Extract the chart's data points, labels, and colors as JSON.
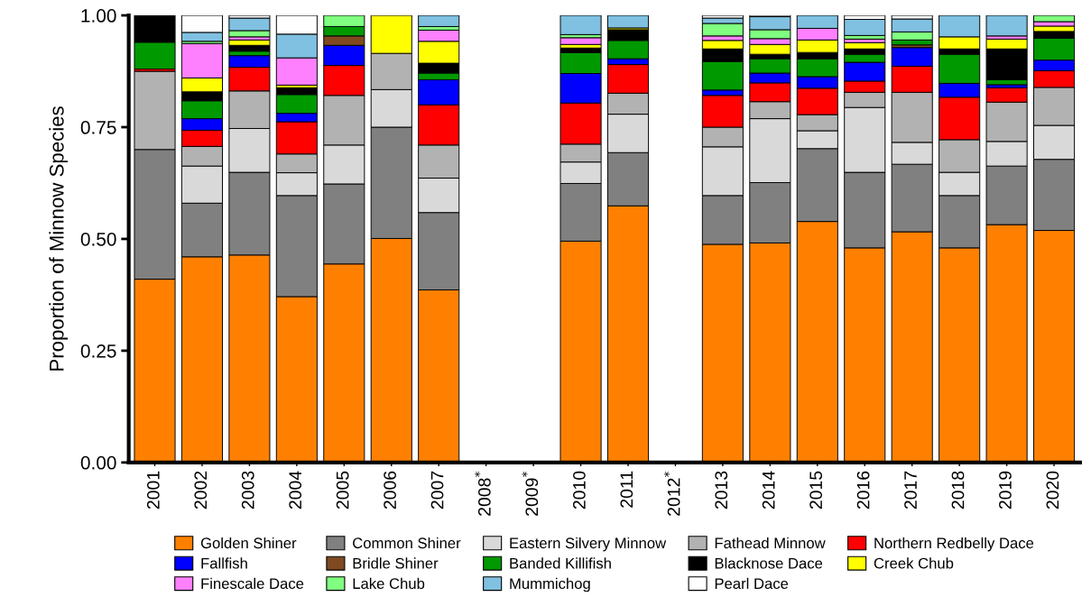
{
  "chart_data": {
    "type": "bar",
    "stacked": true,
    "ylabel": "Proportion of Minnow Species",
    "categories": [
      "2001",
      "2002",
      "2003",
      "2004",
      "2005",
      "2006",
      "2007",
      "2008$^{*}$",
      "2009$^{*}$",
      "2010",
      "2011",
      "2012$^{*}$",
      "2013",
      "2014",
      "2015",
      "2016",
      "2017",
      "2018",
      "2019",
      "2020"
    ],
    "ylim": [
      0,
      1
    ],
    "yticks": [
      {
        "value": 0,
        "label": "0.00"
      },
      {
        "value": 0.25,
        "label": "0.25"
      },
      {
        "value": 0.5,
        "label": "0.50"
      },
      {
        "value": 0.75,
        "label": "0.75"
      },
      {
        "value": 1,
        "label": "1.00"
      }
    ],
    "grid": false,
    "legend": "bottom",
    "series": [
      {
        "name": "Golden Shiner",
        "color": "#ff8000",
        "values": [
          0.41,
          0.46,
          0.464,
          0.371,
          0.444,
          0.501,
          0.386,
          null,
          null,
          0.495,
          0.574,
          null,
          0.488,
          0.491,
          0.539,
          0.48,
          0.516,
          0.48,
          0.532,
          0.519
        ]
      },
      {
        "name": "Common Shiner",
        "color": "#808080",
        "values": [
          0.29,
          0.12,
          0.185,
          0.226,
          0.179,
          0.249,
          0.173,
          null,
          null,
          0.129,
          0.119,
          null,
          0.109,
          0.135,
          0.163,
          0.169,
          0.151,
          0.117,
          0.131,
          0.159
        ]
      },
      {
        "name": "Eastern Silvery Minnow",
        "color": "#d9d9d9",
        "values": [
          0,
          0.083,
          0.098,
          0.051,
          0.087,
          0.084,
          0.077,
          null,
          null,
          0.048,
          0.086,
          null,
          0.109,
          0.143,
          0.04,
          0.145,
          0.049,
          0.052,
          0.055,
          0.076
        ]
      },
      {
        "name": "Fathead Minnow",
        "color": "#b2b2b2",
        "values": [
          0.175,
          0.044,
          0.084,
          0.042,
          0.111,
          0.081,
          0.074,
          null,
          null,
          0.04,
          0.047,
          null,
          0.044,
          0.038,
          0.036,
          0.034,
          0.112,
          0.073,
          0.088,
          0.085
        ]
      },
      {
        "name": "Northern Redbelly Dace",
        "color": "#ff0000",
        "values": [
          0.005,
          0.036,
          0.053,
          0.072,
          0.067,
          0,
          0.09,
          null,
          null,
          0.092,
          0.064,
          null,
          0.071,
          0.042,
          0.059,
          0.025,
          0.058,
          0.095,
          0.032,
          0.037
        ]
      },
      {
        "name": "Fallfish",
        "color": "#0000ff",
        "values": [
          0,
          0.026,
          0.026,
          0.019,
          0.045,
          0,
          0.056,
          null,
          null,
          0.066,
          0.013,
          null,
          0.012,
          0.022,
          0.026,
          0.042,
          0.042,
          0.031,
          0.007,
          0.024
        ]
      },
      {
        "name": "Bridle Shiner",
        "color": "#7f4a22",
        "values": [
          0,
          0,
          0,
          0,
          0.021,
          0,
          0,
          null,
          null,
          0,
          0,
          null,
          0,
          0,
          0,
          0,
          0.006,
          0,
          0,
          0
        ]
      },
      {
        "name": "Banded Killifish",
        "color": "#009900",
        "values": [
          0.06,
          0.04,
          0.01,
          0.042,
          0.021,
          0,
          0.015,
          null,
          null,
          0.047,
          0.041,
          null,
          0.064,
          0.032,
          0.04,
          0.018,
          0.011,
          0.065,
          0.011,
          0.049
        ]
      },
      {
        "name": "Blacknose Dace",
        "color": "#000000",
        "values": [
          0.06,
          0.02,
          0.013,
          0.015,
          0,
          0,
          0.022,
          null,
          null,
          0.01,
          0.024,
          null,
          0.028,
          0.01,
          0.014,
          0.012,
          0,
          0.012,
          0.069,
          0.015
        ]
      },
      {
        "name": "Creek Chub",
        "color": "#ffff00",
        "values": [
          0,
          0.031,
          0.012,
          0.006,
          0,
          0.085,
          0.049,
          null,
          null,
          0.008,
          0.004,
          null,
          0.019,
          0.022,
          0.028,
          0.014,
          0,
          0.027,
          0.022,
          0.012
        ]
      },
      {
        "name": "Finescale Dace",
        "color": "#ff80ff",
        "values": [
          0,
          0.077,
          0.007,
          0.061,
          0,
          0,
          0.025,
          null,
          null,
          0.015,
          0,
          null,
          0.01,
          0.013,
          0.026,
          0.008,
          0,
          0,
          0.007,
          0.01
        ]
      },
      {
        "name": "Lake Chub",
        "color": "#80ff80",
        "values": [
          0,
          0.005,
          0.014,
          0,
          0.025,
          0,
          0.008,
          null,
          null,
          0.007,
          0,
          null,
          0.028,
          0.02,
          0,
          0.008,
          0.018,
          0,
          0,
          0.014
        ]
      },
      {
        "name": "Mummichog",
        "color": "#80c0e0",
        "values": [
          0,
          0.02,
          0.028,
          0.053,
          0,
          0,
          0.025,
          null,
          null,
          0.043,
          0.028,
          null,
          0.012,
          0.029,
          0.029,
          0.036,
          0.029,
          0.048,
          0.046,
          0
        ]
      },
      {
        "name": "Pearl Dace",
        "color": "#ffffff",
        "values": [
          0,
          0.038,
          0.006,
          0.042,
          0,
          0,
          0,
          null,
          null,
          0,
          0,
          null,
          0.006,
          0.003,
          0,
          0.009,
          0.008,
          0,
          0,
          0
        ]
      }
    ]
  }
}
